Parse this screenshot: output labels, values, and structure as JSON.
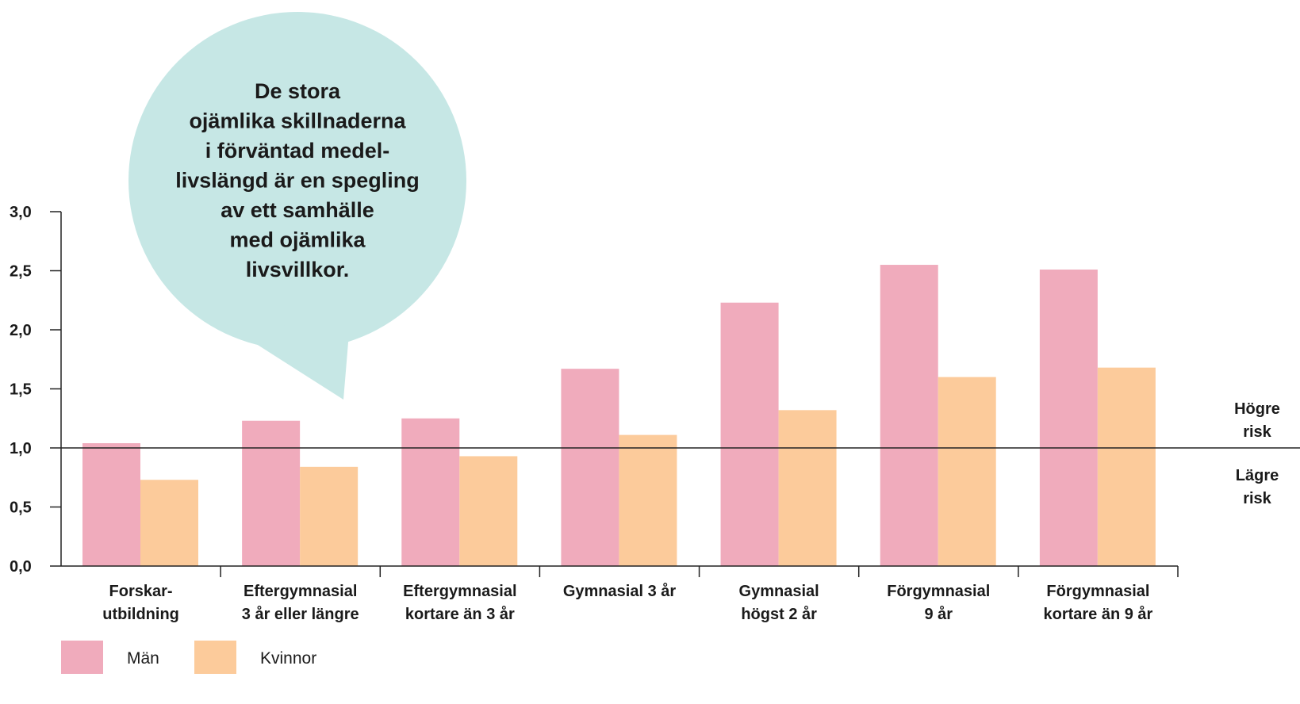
{
  "chart_data": {
    "type": "bar",
    "annotation": "De stora\nojämlika skillnaderna\ni förväntad medel-\nlivslängd är en spegling\nav ett samhälle\nmed ojämlika\nlivsvillkor.",
    "categories": [
      "Forskar-\nutbildning",
      "Eftergymnasial\n3 år eller längre",
      "Eftergymnasial\nkortare än 3 år",
      "Gymnasial 3 år",
      "Gymnasial\nhögst 2 år",
      "Förgymnasial\n9 år",
      "Förgymnasial\nkortare än 9 år"
    ],
    "series": [
      {
        "name": "Män",
        "color": "#f0abbc",
        "values": [
          1.04,
          1.23,
          1.25,
          1.67,
          2.23,
          2.55,
          2.51
        ]
      },
      {
        "name": "Kvinnor",
        "color": "#fccb9b",
        "values": [
          0.73,
          0.84,
          0.93,
          1.11,
          1.32,
          1.6,
          1.68
        ]
      }
    ],
    "ylim": [
      0,
      3
    ],
    "yticks": [
      {
        "value": 0,
        "label": "0,0"
      },
      {
        "value": 0.5,
        "label": "0,5"
      },
      {
        "value": 1,
        "label": "1,0"
      },
      {
        "value": 1.5,
        "label": "1,5"
      },
      {
        "value": 2,
        "label": "2,0"
      },
      {
        "value": 2.5,
        "label": "2,5"
      },
      {
        "value": 3,
        "label": "3,0"
      }
    ],
    "reference_line": 1,
    "reference_labels": {
      "above": "Högre\nrisk",
      "below": "Lägre\nrisk"
    }
  }
}
